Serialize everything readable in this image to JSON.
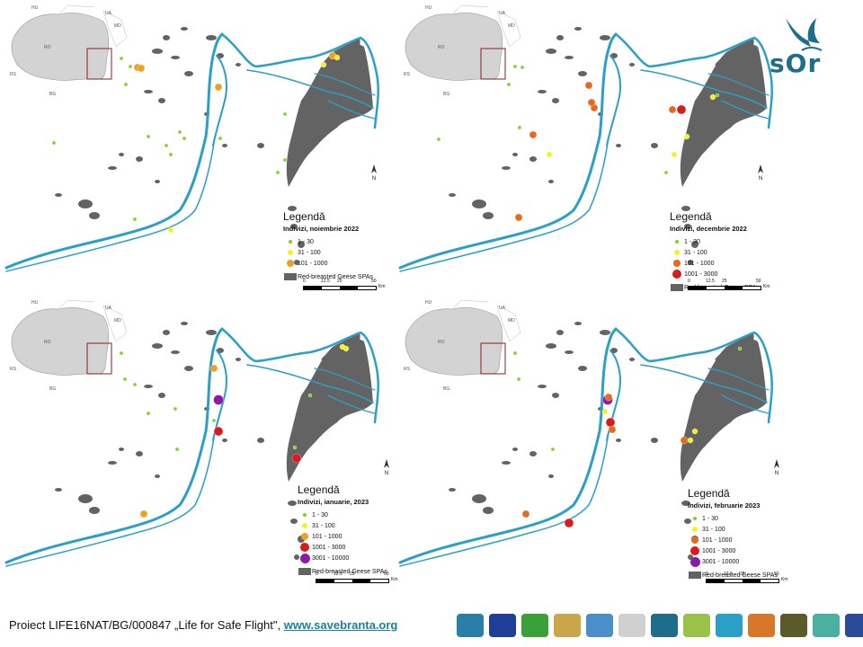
{
  "panels": [
    {
      "id": "nov-2022",
      "legend_title": "Legendă",
      "legend_subtitle": "Indivizi, noiembrie 2022",
      "legend_items": [
        {
          "label": "1 - 30",
          "color": "#7ed321",
          "size": 4
        },
        {
          "label": "31 - 100",
          "color": "#f2f21f",
          "size": 6
        },
        {
          "label": "101 - 1000",
          "color": "#f0a020",
          "size": 8
        }
      ],
      "spa_label": "Red-breasted Geese SPAs",
      "scale_labels": [
        "0",
        "12.5",
        "25",
        "50"
      ],
      "scale_unit": "Km",
      "north_label": "N"
    },
    {
      "id": "dec-2022",
      "legend_title": "Legendă",
      "legend_subtitle": "Indivizi, decembrie 2022",
      "legend_items": [
        {
          "label": "1 - 30",
          "color": "#7ed321",
          "size": 4
        },
        {
          "label": "31 - 100",
          "color": "#f2f21f",
          "size": 6
        },
        {
          "label": "101 - 1000",
          "color": "#e8681e",
          "size": 8
        },
        {
          "label": "1001 - 3000",
          "color": "#d81b1b",
          "size": 10
        }
      ],
      "spa_label": "Red-breasted Geese SPAs",
      "scale_labels": [
        "0",
        "12.5",
        "25",
        "50"
      ],
      "scale_unit": "Km",
      "north_label": "N"
    },
    {
      "id": "jan-2023",
      "legend_title": "Legendă",
      "legend_subtitle": "Indivizi, ianuarie, 2023",
      "legend_items": [
        {
          "label": "1 - 30",
          "color": "#7ed321",
          "size": 4
        },
        {
          "label": "31 - 100",
          "color": "#f2f21f",
          "size": 6
        },
        {
          "label": "101 - 1000",
          "color": "#f0a020",
          "size": 8
        },
        {
          "label": "1001 - 3000",
          "color": "#d81b1b",
          "size": 10
        },
        {
          "label": "3001 - 10000",
          "color": "#8e1aa8",
          "size": 11
        }
      ],
      "spa_label": "Red-breasted Geese SPAs",
      "scale_labels": [
        "0",
        "12.5",
        "25",
        "50"
      ],
      "scale_unit": "Km",
      "north_label": "N"
    },
    {
      "id": "feb-2023",
      "legend_title": "Legendă",
      "legend_subtitle": "Indivizi, februarie 2023",
      "legend_items": [
        {
          "label": "1 - 30",
          "color": "#7ed321",
          "size": 4
        },
        {
          "label": "31 - 100",
          "color": "#f2f21f",
          "size": 6
        },
        {
          "label": "101 - 1000",
          "color": "#e8681e",
          "size": 8
        },
        {
          "label": "1001 - 3000",
          "color": "#d81b1b",
          "size": 10
        },
        {
          "label": "3001 - 10000",
          "color": "#8e1aa8",
          "size": 11
        }
      ],
      "spa_label": "Red-breasted Geese SPAs",
      "scale_labels": [
        "0",
        "12.5",
        "25",
        "50"
      ],
      "scale_unit": "Km",
      "north_label": "N"
    }
  ],
  "inset_labels": {
    "ro": "RO",
    "ua": "UA",
    "md": "MD",
    "rs": "RS",
    "bg": "BG",
    "hu": "HU"
  },
  "branding": {
    "logo_text": "sOr"
  },
  "footer": {
    "project_text": "Proiect LIFE16NAT/BG/000847  „Life for Safe Flight\",",
    "website": "www.savebranta.org"
  },
  "colors": {
    "river": "#2aa0c8",
    "spa": "#636363",
    "country": "#d3d3d3",
    "inset_box": "#8b1c1c"
  }
}
